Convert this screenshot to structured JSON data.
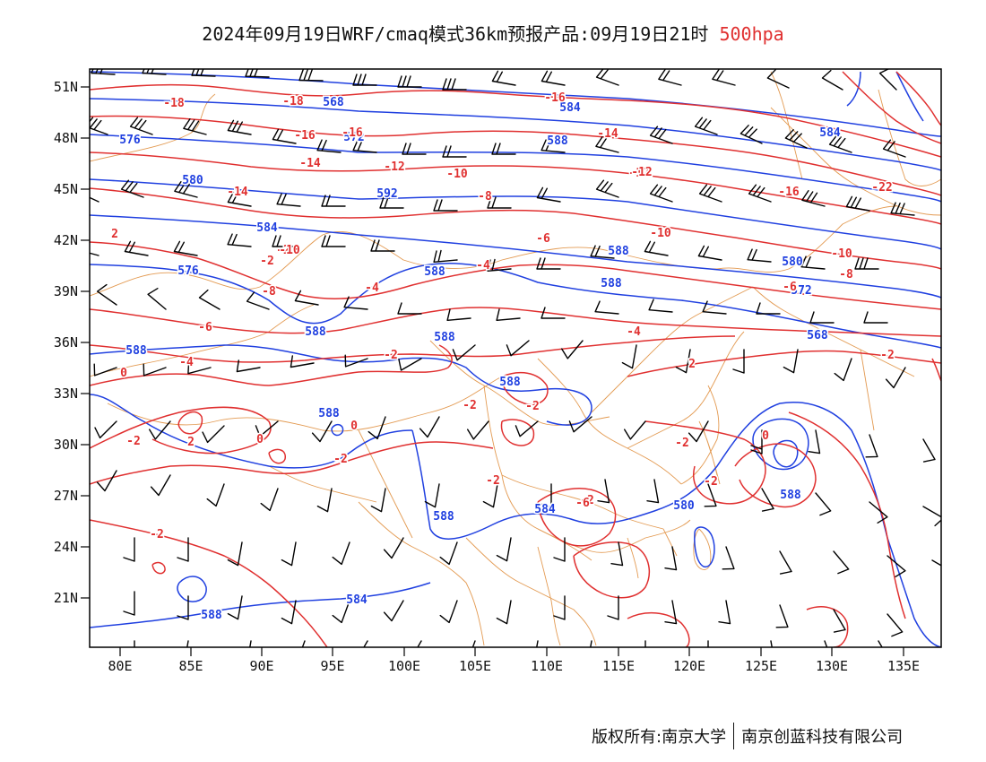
{
  "title": {
    "main": "2024年09月19日WRF/cmaq模式36km预报产品:09月19日21时",
    "level": "500hpa"
  },
  "axes": {
    "lon_labels": [
      "80E",
      "85E",
      "90E",
      "95E",
      "100E",
      "105E",
      "110E",
      "115E",
      "120E",
      "125E",
      "130E",
      "135E"
    ],
    "lat_labels": [
      "51N",
      "48N",
      "45N",
      "42N",
      "39N",
      "36N",
      "33N",
      "30N",
      "27N",
      "24N",
      "21N"
    ],
    "lon_range": [
      78,
      138
    ],
    "lat_range": [
      18,
      52
    ]
  },
  "contours": {
    "height_color": "#2040e0",
    "temperature_color": "#e03030",
    "boundary_color": "#e09040",
    "wind_color": "#000000",
    "height_labels": [
      "576",
      "572",
      "568",
      "580",
      "584",
      "588",
      "592",
      "584",
      "576",
      "588",
      "588",
      "588",
      "588",
      "588",
      "588",
      "588",
      "588",
      "588",
      "584",
      "580",
      "584",
      "588",
      "588",
      "580",
      "572",
      "568",
      "584"
    ],
    "temperature_labels": [
      "-18",
      "-18",
      "-16",
      "-14",
      "-12",
      "-10",
      "-8",
      "-6",
      "-4",
      "-2",
      "0",
      "2",
      "-16",
      "-14",
      "-12",
      "-10",
      "-6",
      "-4",
      "-2",
      "-2",
      "-2",
      "-2",
      "0",
      "-2",
      "-22",
      "-16",
      "-10",
      "-8",
      "-6",
      "-4",
      "-2",
      "-2",
      "2",
      "-2",
      "0",
      "-2",
      "2",
      "0",
      "-2",
      "-6",
      "-2",
      "-12",
      "-14",
      "-16",
      "-10",
      "-8",
      "-4",
      "-2"
    ]
  },
  "footer": {
    "copyright": "版权所有:南京大学",
    "company": "南京创蓝科技有限公司"
  }
}
